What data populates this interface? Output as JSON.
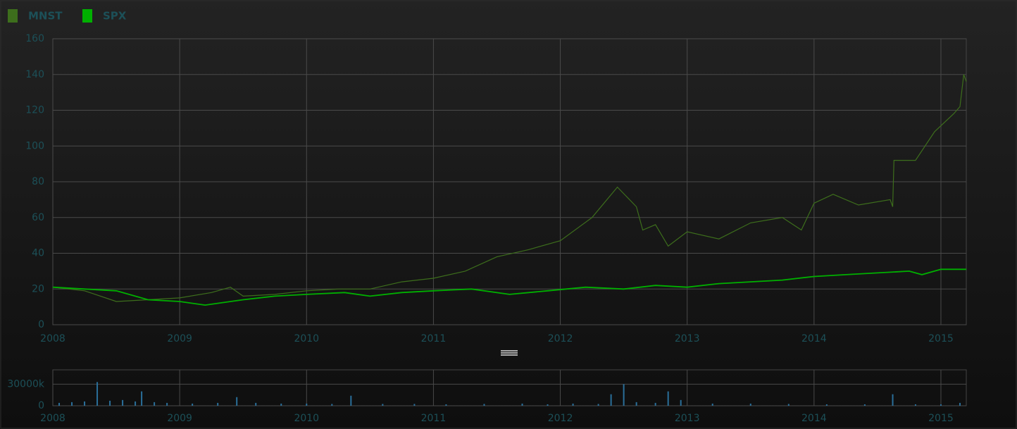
{
  "chart_data": [
    {
      "type": "line",
      "legend": "top-left",
      "grid": true,
      "xlim": [
        2008,
        2015.2
      ],
      "xticks": [
        2008,
        2009,
        2010,
        2011,
        2012,
        2013,
        2014,
        2015
      ],
      "ylim": [
        0,
        160
      ],
      "yticks": [
        0,
        20,
        40,
        60,
        80,
        100,
        120,
        140,
        160
      ],
      "series": [
        {
          "name": "MNST",
          "color": "#3d6e1c",
          "x": [
            2008.0,
            2008.25,
            2008.5,
            2008.75,
            2009.0,
            2009.25,
            2009.4,
            2009.5,
            2009.75,
            2010.0,
            2010.25,
            2010.5,
            2010.75,
            2011.0,
            2011.25,
            2011.5,
            2011.75,
            2012.0,
            2012.25,
            2012.45,
            2012.6,
            2012.65,
            2012.75,
            2012.85,
            2013.0,
            2013.25,
            2013.5,
            2013.75,
            2013.9,
            2014.0,
            2014.15,
            2014.35,
            2014.6,
            2014.62,
            2014.63,
            2014.8,
            2014.95,
            2015.1,
            2015.15,
            2015.18,
            2015.2
          ],
          "values": [
            21,
            19,
            13,
            14,
            15,
            18,
            21,
            16,
            17,
            19,
            20,
            20,
            24,
            26,
            30,
            38,
            42,
            47,
            60,
            77,
            66,
            53,
            56,
            44,
            52,
            48,
            57,
            60,
            53,
            68,
            73,
            67,
            70,
            66,
            92,
            92,
            108,
            118,
            122,
            140,
            136
          ]
        },
        {
          "name": "SPX",
          "color": "#00b000",
          "x": [
            2008.0,
            2008.25,
            2008.5,
            2008.75,
            2009.0,
            2009.2,
            2009.5,
            2009.75,
            2010.0,
            2010.3,
            2010.5,
            2010.75,
            2011.0,
            2011.3,
            2011.6,
            2011.9,
            2012.2,
            2012.5,
            2012.75,
            2013.0,
            2013.25,
            2013.5,
            2013.75,
            2014.0,
            2014.25,
            2014.5,
            2014.75,
            2014.85,
            2015.0,
            2015.2
          ],
          "values": [
            21,
            20,
            19,
            14,
            13,
            11,
            14,
            16,
            17,
            18,
            16,
            18,
            19,
            20,
            17,
            19,
            21,
            20,
            22,
            21,
            23,
            24,
            25,
            27,
            28,
            29,
            30,
            28,
            31,
            31
          ]
        }
      ]
    },
    {
      "type": "bar",
      "grid": true,
      "xlim": [
        2008,
        2015.2
      ],
      "xticks": [
        2008,
        2009,
        2010,
        2011,
        2012,
        2013,
        2014,
        2015
      ],
      "ylim": [
        0,
        50000
      ],
      "yticks": [
        0,
        {
          "value": 30000,
          "label": "30000k"
        }
      ],
      "color": "#2a6f9a",
      "x": [
        2008.05,
        2008.15,
        2008.25,
        2008.35,
        2008.45,
        2008.55,
        2008.65,
        2008.7,
        2008.8,
        2008.9,
        2009.1,
        2009.3,
        2009.45,
        2009.6,
        2009.8,
        2010.0,
        2010.2,
        2010.35,
        2010.6,
        2010.85,
        2011.1,
        2011.4,
        2011.7,
        2011.9,
        2012.1,
        2012.3,
        2012.4,
        2012.5,
        2012.6,
        2012.75,
        2012.85,
        2012.95,
        2013.2,
        2013.5,
        2013.8,
        2014.1,
        2014.4,
        2014.62,
        2014.8,
        2015.0,
        2015.15
      ],
      "values": [
        4000,
        5000,
        6000,
        33000,
        7000,
        8000,
        6000,
        20000,
        5000,
        4000,
        3000,
        4000,
        12000,
        4000,
        3000,
        3000,
        2500,
        14000,
        2500,
        2500,
        2000,
        2500,
        3000,
        2000,
        3000,
        2500,
        16000,
        30000,
        5000,
        4000,
        20000,
        8000,
        3000,
        3000,
        2500,
        2000,
        2000,
        16000,
        2000,
        2000,
        4000
      ]
    }
  ]
}
